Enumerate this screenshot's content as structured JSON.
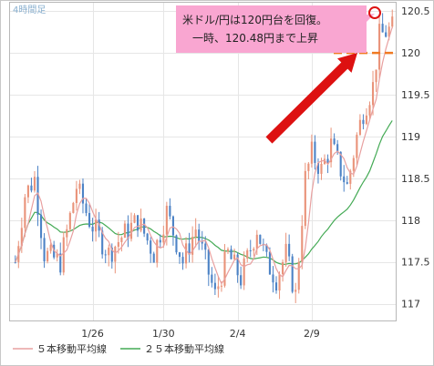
{
  "chart_data": {
    "type": "candlestick",
    "period_label": "4時間足",
    "x_tick_labels": [
      "1/26",
      "1/30",
      "2/4",
      "2/9"
    ],
    "y_tick_labels": [
      "120.5",
      "120",
      "119.5",
      "119",
      "118.5",
      "118",
      "117.5",
      "117"
    ],
    "ylim": [
      116.8,
      120.6
    ],
    "legend": [
      {
        "label": "５本移動平均線",
        "color": "#e8a0a0"
      },
      {
        "label": "２５本移動平均線",
        "color": "#44aa55"
      }
    ],
    "annotation": {
      "lines": [
        "米ドル/円は120円台を回復。",
        "一時、120.48円まで上昇"
      ],
      "level": 120.48,
      "reference_level": 120.0
    },
    "colors": {
      "up": "#e9937a",
      "down": "#4d83c6",
      "ma5": "#e8a0a0",
      "ma25": "#44aa55",
      "arrow": "#dd1111",
      "dashed": "#f07a22",
      "callout_bg": "#f9a6d1"
    }
  }
}
